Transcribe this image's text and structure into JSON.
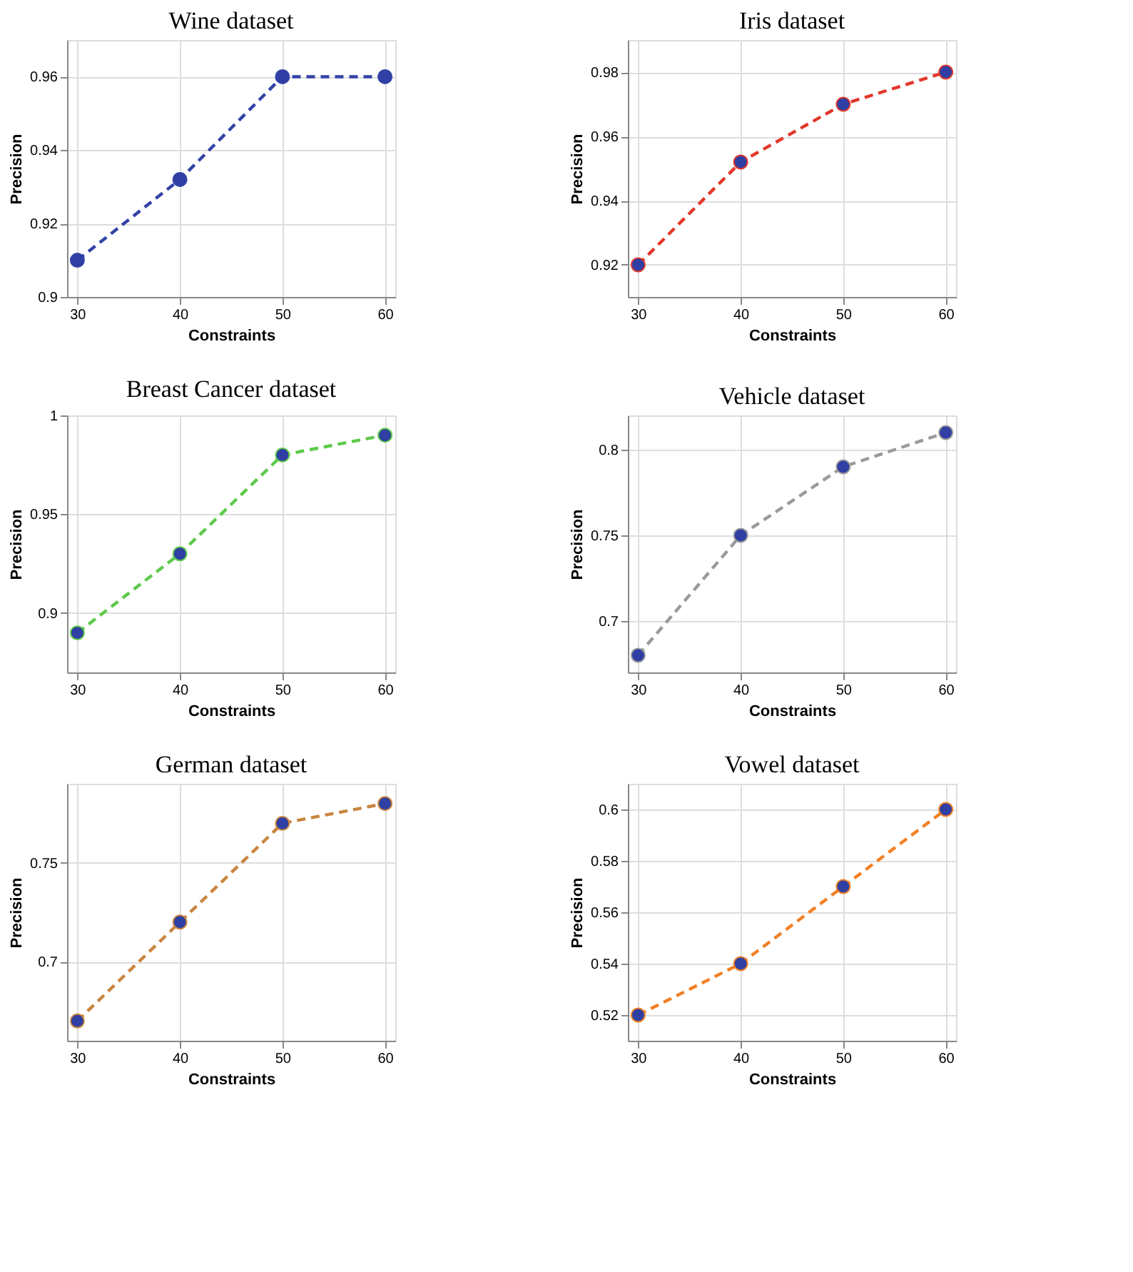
{
  "chart_data": [
    {
      "type": "line",
      "title": "Wine dataset",
      "xlabel": "Constraints",
      "ylabel": "Precision",
      "x": [
        30,
        40,
        50,
        60
      ],
      "xlim": [
        29,
        61
      ],
      "xticks": [
        30,
        40,
        50,
        60
      ],
      "ylim": [
        0.9,
        0.97
      ],
      "yticks": [
        0.9,
        0.92,
        0.94,
        0.96
      ],
      "grid": true,
      "marker": "circle",
      "line_style": "dashed",
      "series": [
        {
          "color": "#3343a6",
          "values": [
            0.91,
            0.932,
            0.96,
            0.96
          ]
        }
      ]
    },
    {
      "type": "line",
      "title": "Iris dataset",
      "xlabel": "Constraints",
      "ylabel": "Precision",
      "x": [
        30,
        40,
        50,
        60
      ],
      "xlim": [
        29,
        61
      ],
      "xticks": [
        30,
        40,
        50,
        60
      ],
      "ylim": [
        0.91,
        0.99
      ],
      "yticks": [
        0.92,
        0.94,
        0.96,
        0.98
      ],
      "grid": true,
      "marker": "circle",
      "line_style": "dashed",
      "series": [
        {
          "color": "#e2372a",
          "values": [
            0.92,
            0.952,
            0.97,
            0.98
          ]
        }
      ]
    },
    {
      "type": "line",
      "title": "Breast Cancer dataset",
      "xlabel": "Constraints",
      "ylabel": "Precision",
      "x": [
        30,
        40,
        50,
        60
      ],
      "xlim": [
        29,
        61
      ],
      "xticks": [
        30,
        40,
        50,
        60
      ],
      "ylim": [
        0.87,
        1.0
      ],
      "yticks": [
        0.9,
        0.95,
        1
      ],
      "grid": true,
      "marker": "circle",
      "line_style": "dashed",
      "series": [
        {
          "color": "#5dc94a",
          "values": [
            0.89,
            0.93,
            0.98,
            0.99
          ]
        }
      ]
    },
    {
      "type": "line",
      "title": "Vehicle dataset",
      "xlabel": "Constraints",
      "ylabel": "Precision",
      "x": [
        30,
        40,
        50,
        60
      ],
      "xlim": [
        29,
        61
      ],
      "xticks": [
        30,
        40,
        50,
        60
      ],
      "ylim": [
        0.67,
        0.82
      ],
      "yticks": [
        0.7,
        0.75,
        0.8
      ],
      "grid": true,
      "marker": "circle",
      "line_style": "dashed",
      "series": [
        {
          "color": "#9a9a9a",
          "values": [
            0.68,
            0.75,
            0.79,
            0.81
          ]
        }
      ]
    },
    {
      "type": "line",
      "title": "German dataset",
      "xlabel": "Constraints",
      "ylabel": "Precision",
      "x": [
        30,
        40,
        50,
        60
      ],
      "xlim": [
        29,
        61
      ],
      "xticks": [
        30,
        40,
        50,
        60
      ],
      "ylim": [
        0.66,
        0.79
      ],
      "yticks": [
        0.7,
        0.75
      ],
      "grid": true,
      "marker": "circle",
      "line_style": "dashed",
      "series": [
        {
          "color": "#c9853f",
          "values": [
            0.67,
            0.72,
            0.77,
            0.78
          ]
        }
      ]
    },
    {
      "type": "line",
      "title": "Vowel dataset",
      "xlabel": "Constraints",
      "ylabel": "Precision",
      "x": [
        30,
        40,
        50,
        60
      ],
      "xlim": [
        29,
        61
      ],
      "xticks": [
        30,
        40,
        50,
        60
      ],
      "ylim": [
        0.51,
        0.61
      ],
      "yticks": [
        0.52,
        0.54,
        0.56,
        0.58,
        0.6
      ],
      "grid": true,
      "marker": "circle",
      "line_style": "dashed",
      "series": [
        {
          "color": "#f28025",
          "values": [
            0.52,
            0.54,
            0.57,
            0.6
          ]
        }
      ]
    }
  ]
}
